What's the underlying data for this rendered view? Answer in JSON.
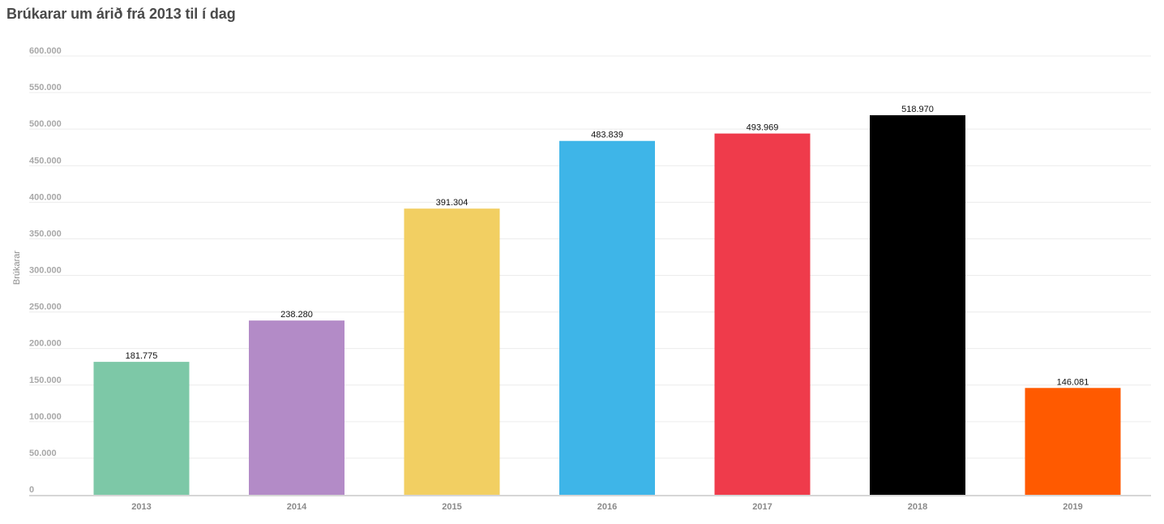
{
  "chart_data": {
    "type": "bar",
    "title": "Brúkarar um árið frá 2013 til í dag",
    "ylabel": "Brúkarar",
    "xlabel": "",
    "categories": [
      "2013",
      "2014",
      "2015",
      "2016",
      "2017",
      "2018",
      "2019"
    ],
    "values": [
      181775,
      238280,
      391304,
      483839,
      493969,
      518970,
      146081
    ],
    "value_labels": [
      "181.775",
      "238.280",
      "391.304",
      "483.839",
      "493.969",
      "518.970",
      "146.081"
    ],
    "bar_colors": [
      "#7dc8a7",
      "#b38bc7",
      "#f2cf62",
      "#3eb5e8",
      "#ef3b4b",
      "#000000",
      "#ff5a00"
    ],
    "ylim": [
      0,
      600000
    ],
    "y_ticks": [
      0,
      50000,
      100000,
      150000,
      200000,
      250000,
      300000,
      350000,
      400000,
      450000,
      500000,
      550000,
      600000
    ],
    "y_tick_labels": [
      "0",
      "50.000",
      "100.000",
      "150.000",
      "200.000",
      "250.000",
      "300.000",
      "350.000",
      "400.000",
      "450.000",
      "500.000",
      "550.000",
      "600.000"
    ],
    "grid": true,
    "legend": "none"
  }
}
